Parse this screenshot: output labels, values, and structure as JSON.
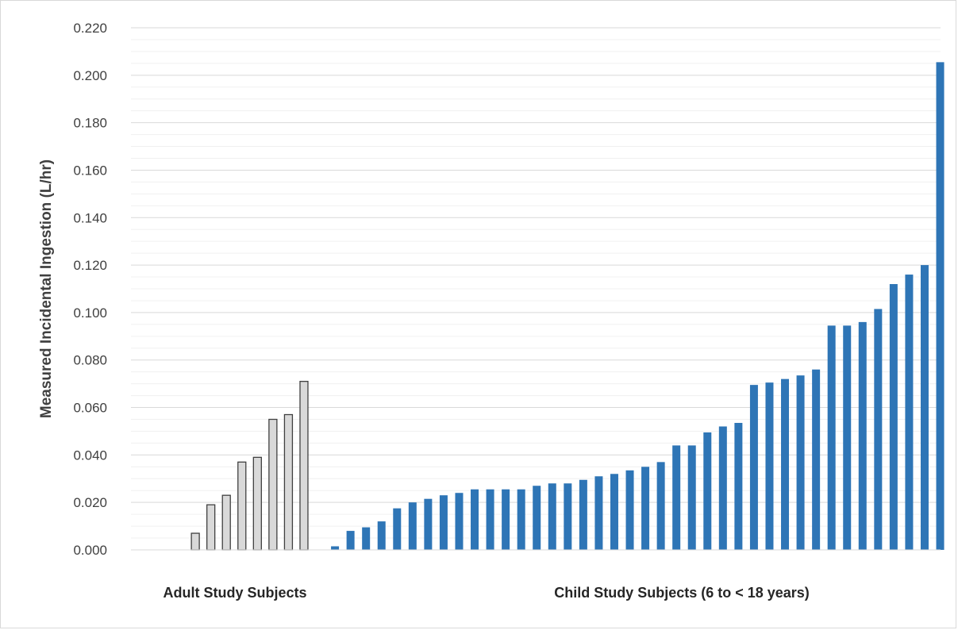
{
  "chart_data": {
    "type": "bar",
    "title": "",
    "ylabel": "Measured Incidental Ingestion (L/hr)",
    "xlabel": "",
    "ylim": [
      0,
      0.22
    ],
    "y_ticks": [
      "0.000",
      "0.020",
      "0.040",
      "0.060",
      "0.080",
      "0.100",
      "0.120",
      "0.140",
      "0.160",
      "0.180",
      "0.200",
      "0.220"
    ],
    "grid": true,
    "minor_gridlines": true,
    "legend": "none",
    "groups": [
      {
        "label": "Adult Study Subjects",
        "color": "#d9d9d9",
        "edge_color": "#404040",
        "values": [
          0,
          0,
          0,
          0.007,
          0.019,
          0.023,
          0.037,
          0.039,
          0.055,
          0.057,
          0.071
        ]
      },
      {
        "label": "Child Study Subjects (6 to < 18 years)",
        "color": "#2e75b6",
        "edge_color": "#2e75b6",
        "values": [
          0.0015,
          0.008,
          0.0095,
          0.012,
          0.0175,
          0.02,
          0.0215,
          0.023,
          0.024,
          0.0255,
          0.0255,
          0.0255,
          0.0255,
          0.027,
          0.028,
          0.028,
          0.0295,
          0.031,
          0.032,
          0.0335,
          0.035,
          0.037,
          0.044,
          0.044,
          0.0495,
          0.052,
          0.0535,
          0.0695,
          0.0705,
          0.072,
          0.0735,
          0.076,
          0.0945,
          0.0945,
          0.096,
          0.1015,
          0.112,
          0.116,
          0.12,
          0.2055
        ]
      }
    ]
  }
}
